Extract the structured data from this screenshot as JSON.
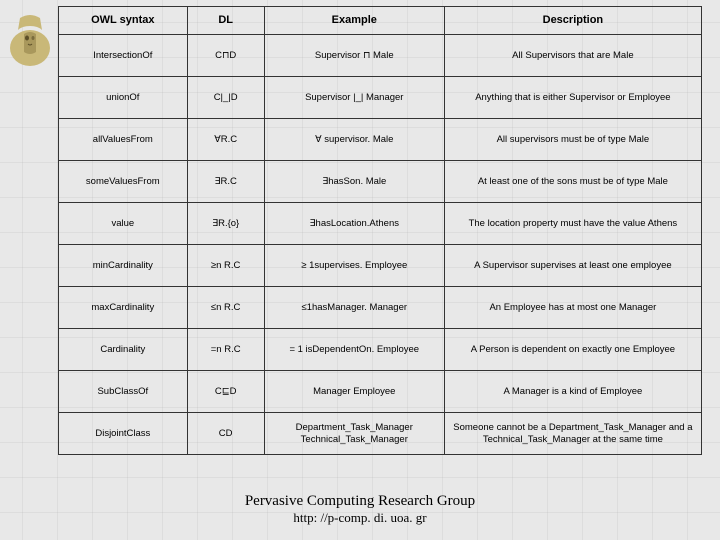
{
  "logo": {
    "fill": "#c9b878",
    "shadow": "#8a7840"
  },
  "table": {
    "columns": [
      "OWL syntax",
      "DL",
      "Example",
      "Description"
    ],
    "rows": [
      {
        "owl": "IntersectionOf",
        "dl": "C⊓D",
        "example": "Supervisor ⊓ Male",
        "desc": "All Supervisors that are Male"
      },
      {
        "owl": "unionOf",
        "dl": "C|_|D",
        "example": "Supervisor |_| Manager",
        "desc": "Anything that is either Supervisor or Employee"
      },
      {
        "owl": "allValuesFrom",
        "dl": "∀R.C",
        "example": "∀ supervisor. Male",
        "desc": "All supervisors must be of type Male"
      },
      {
        "owl": "someValuesFrom",
        "dl": "∃R.C",
        "example": "∃hasSon. Male",
        "desc": "At least one of the sons must be of type Male"
      },
      {
        "owl": "value",
        "dl": "∃R.{o}",
        "example": "∃hasLocation.Athens",
        "desc": "The location property must have the value Athens"
      },
      {
        "owl": "minCardinality",
        "dl": "≥n R.C",
        "example": "≥ 1supervises. Employee",
        "desc": "A Supervisor supervises at least one employee"
      },
      {
        "owl": "maxCardinality",
        "dl": "≤n R.C",
        "example": "≤1hasManager. Manager",
        "desc": "An Employee has at most one Manager"
      },
      {
        "owl": "Cardinality",
        "dl": "=n R.C",
        "example": "= 1 isDependentOn. Employee",
        "desc": "A Person is dependent on exactly one Employee"
      },
      {
        "owl": "SubClassOf",
        "dl": "C⊑D",
        "example": "Manager Employee",
        "desc": "A Manager is a kind of Employee"
      },
      {
        "owl": "DisjointClass",
        "dl": "CD",
        "example": "Department_Task_Manager Technical_Task_Manager",
        "desc": "Someone cannot be a Department_Task_Manager and a Technical_Task_Manager at the same time"
      }
    ]
  },
  "footer": {
    "title": "Pervasive Computing Research Group",
    "url": "http: //p-comp. di. uoa. gr"
  }
}
